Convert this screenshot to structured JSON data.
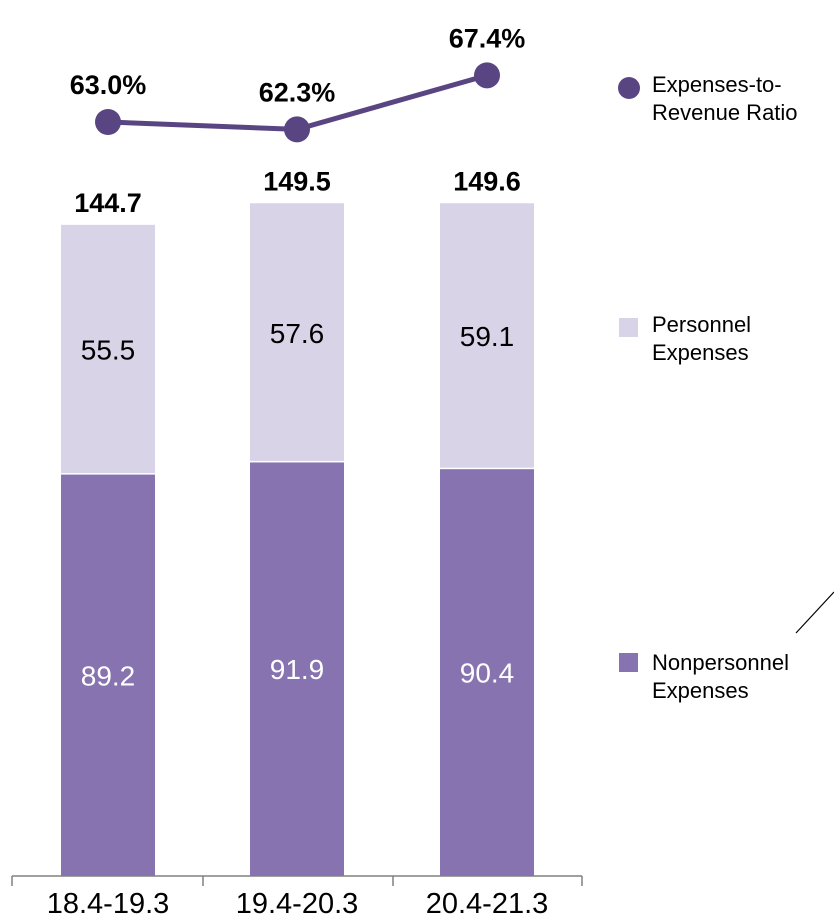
{
  "chart_data": {
    "type": "bar",
    "stacked": true,
    "categories": [
      "18.4-19.3",
      "19.4-20.3",
      "20.4-21.3"
    ],
    "series": [
      {
        "name": "Nonpersonnel Expenses",
        "values": [
          89.2,
          91.9,
          90.4
        ],
        "color": "#8773b0",
        "labels": [
          "89.2",
          "91.9",
          "90.4"
        ]
      },
      {
        "name": "Personnel Expenses",
        "values": [
          55.5,
          57.6,
          59.1
        ],
        "color": "#d9d3e7",
        "labels": [
          "55.5",
          "57.6",
          "59.1"
        ]
      }
    ],
    "totals": [
      144.7,
      149.5,
      149.6
    ],
    "total_labels": [
      "144.7",
      "149.5",
      "149.6"
    ],
    "line_series": {
      "name": "Expenses-to-Revenue Ratio",
      "values": [
        63.0,
        62.3,
        67.4
      ],
      "labels": [
        "63.0%",
        "62.3%",
        "67.4%"
      ],
      "color": "#5a4583"
    },
    "legend": {
      "placement": "right",
      "items": [
        {
          "lines": [
            "Expenses-to-",
            "Revenue Ratio"
          ],
          "marker": "circle",
          "color": "#5a4583"
        },
        {
          "lines": [
            "Personnel",
            "Expenses"
          ],
          "marker": "square",
          "color": "#d9d3e7"
        },
        {
          "lines": [
            "Nonpersonnel",
            "Expenses"
          ],
          "marker": "square",
          "color": "#8773b0"
        }
      ]
    },
    "axis_color": "#808080",
    "grid": false
  }
}
